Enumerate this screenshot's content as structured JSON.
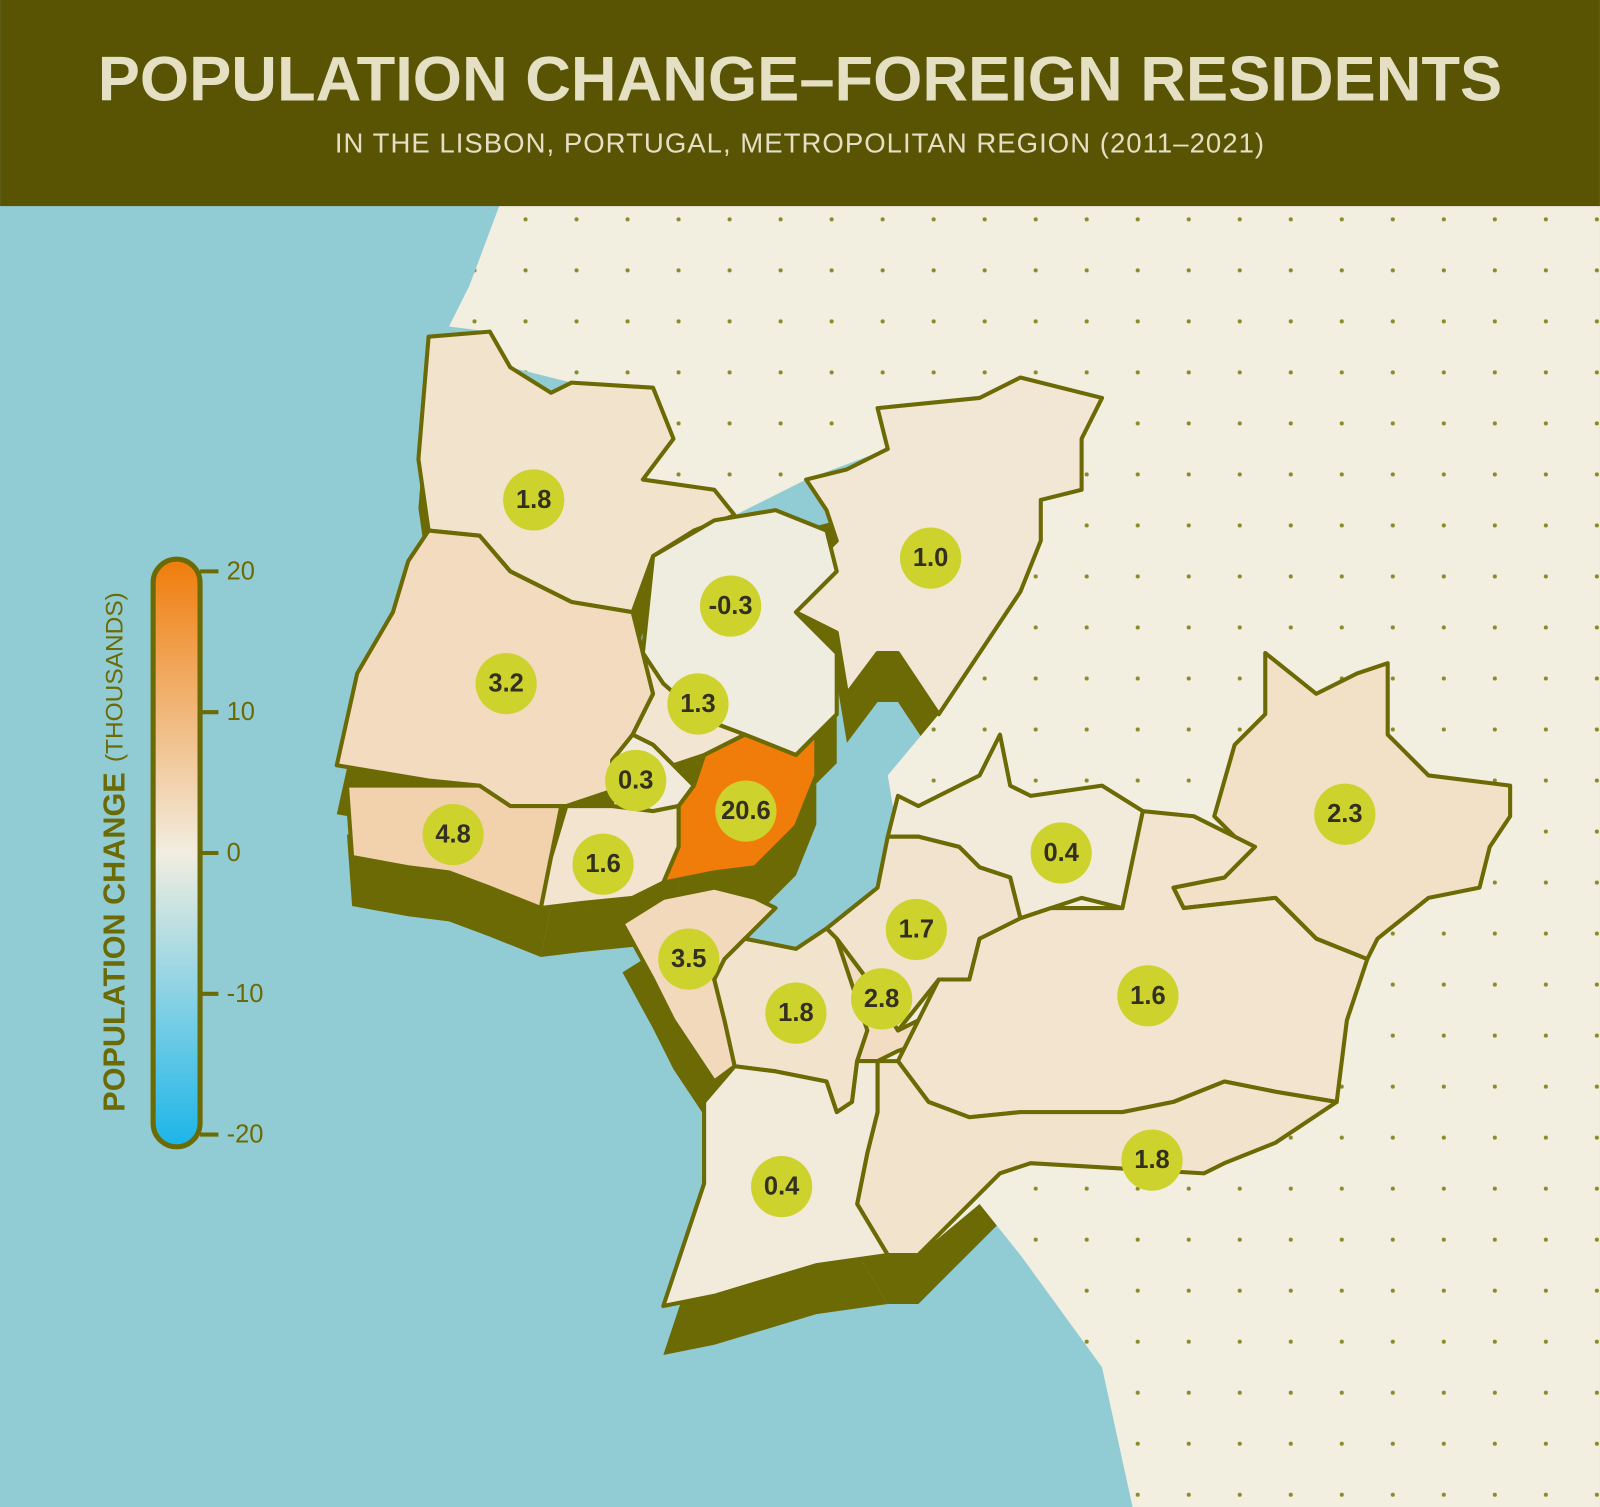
{
  "header": {
    "title": "POPULATION CHANGE–FOREIGN RESIDENTS",
    "subtitle": "IN THE LISBON, PORTUGAL, METROPOLITAN REGION (2011–2021)"
  },
  "legend": {
    "title": "POPULATION CHANGE",
    "unit": "(THOUSANDS)",
    "lim": [
      -20,
      20
    ],
    "ticks": [
      20,
      10,
      0,
      -10,
      -20
    ],
    "colors": {
      "negative": "#1ab5e8",
      "zero": "#f2ede0",
      "positive": "#f07c0a"
    }
  },
  "regions": {
    "values": [
      1.8,
      1.0,
      -0.3,
      3.2,
      1.3,
      0.3,
      20.6,
      4.8,
      1.6,
      2.3,
      0.4,
      1.7,
      3.5,
      1.8,
      2.8,
      1.6,
      1.8,
      0.4
    ],
    "value_labels": [
      "1.8",
      "1.0",
      "-0.3",
      "3.2",
      "1.3",
      "0.3",
      "20.6",
      "4.8",
      "1.6",
      "2.3",
      "0.4",
      "1.7",
      "3.5",
      "1.8",
      "2.8",
      "1.6",
      "1.8",
      "0.4"
    ]
  }
}
